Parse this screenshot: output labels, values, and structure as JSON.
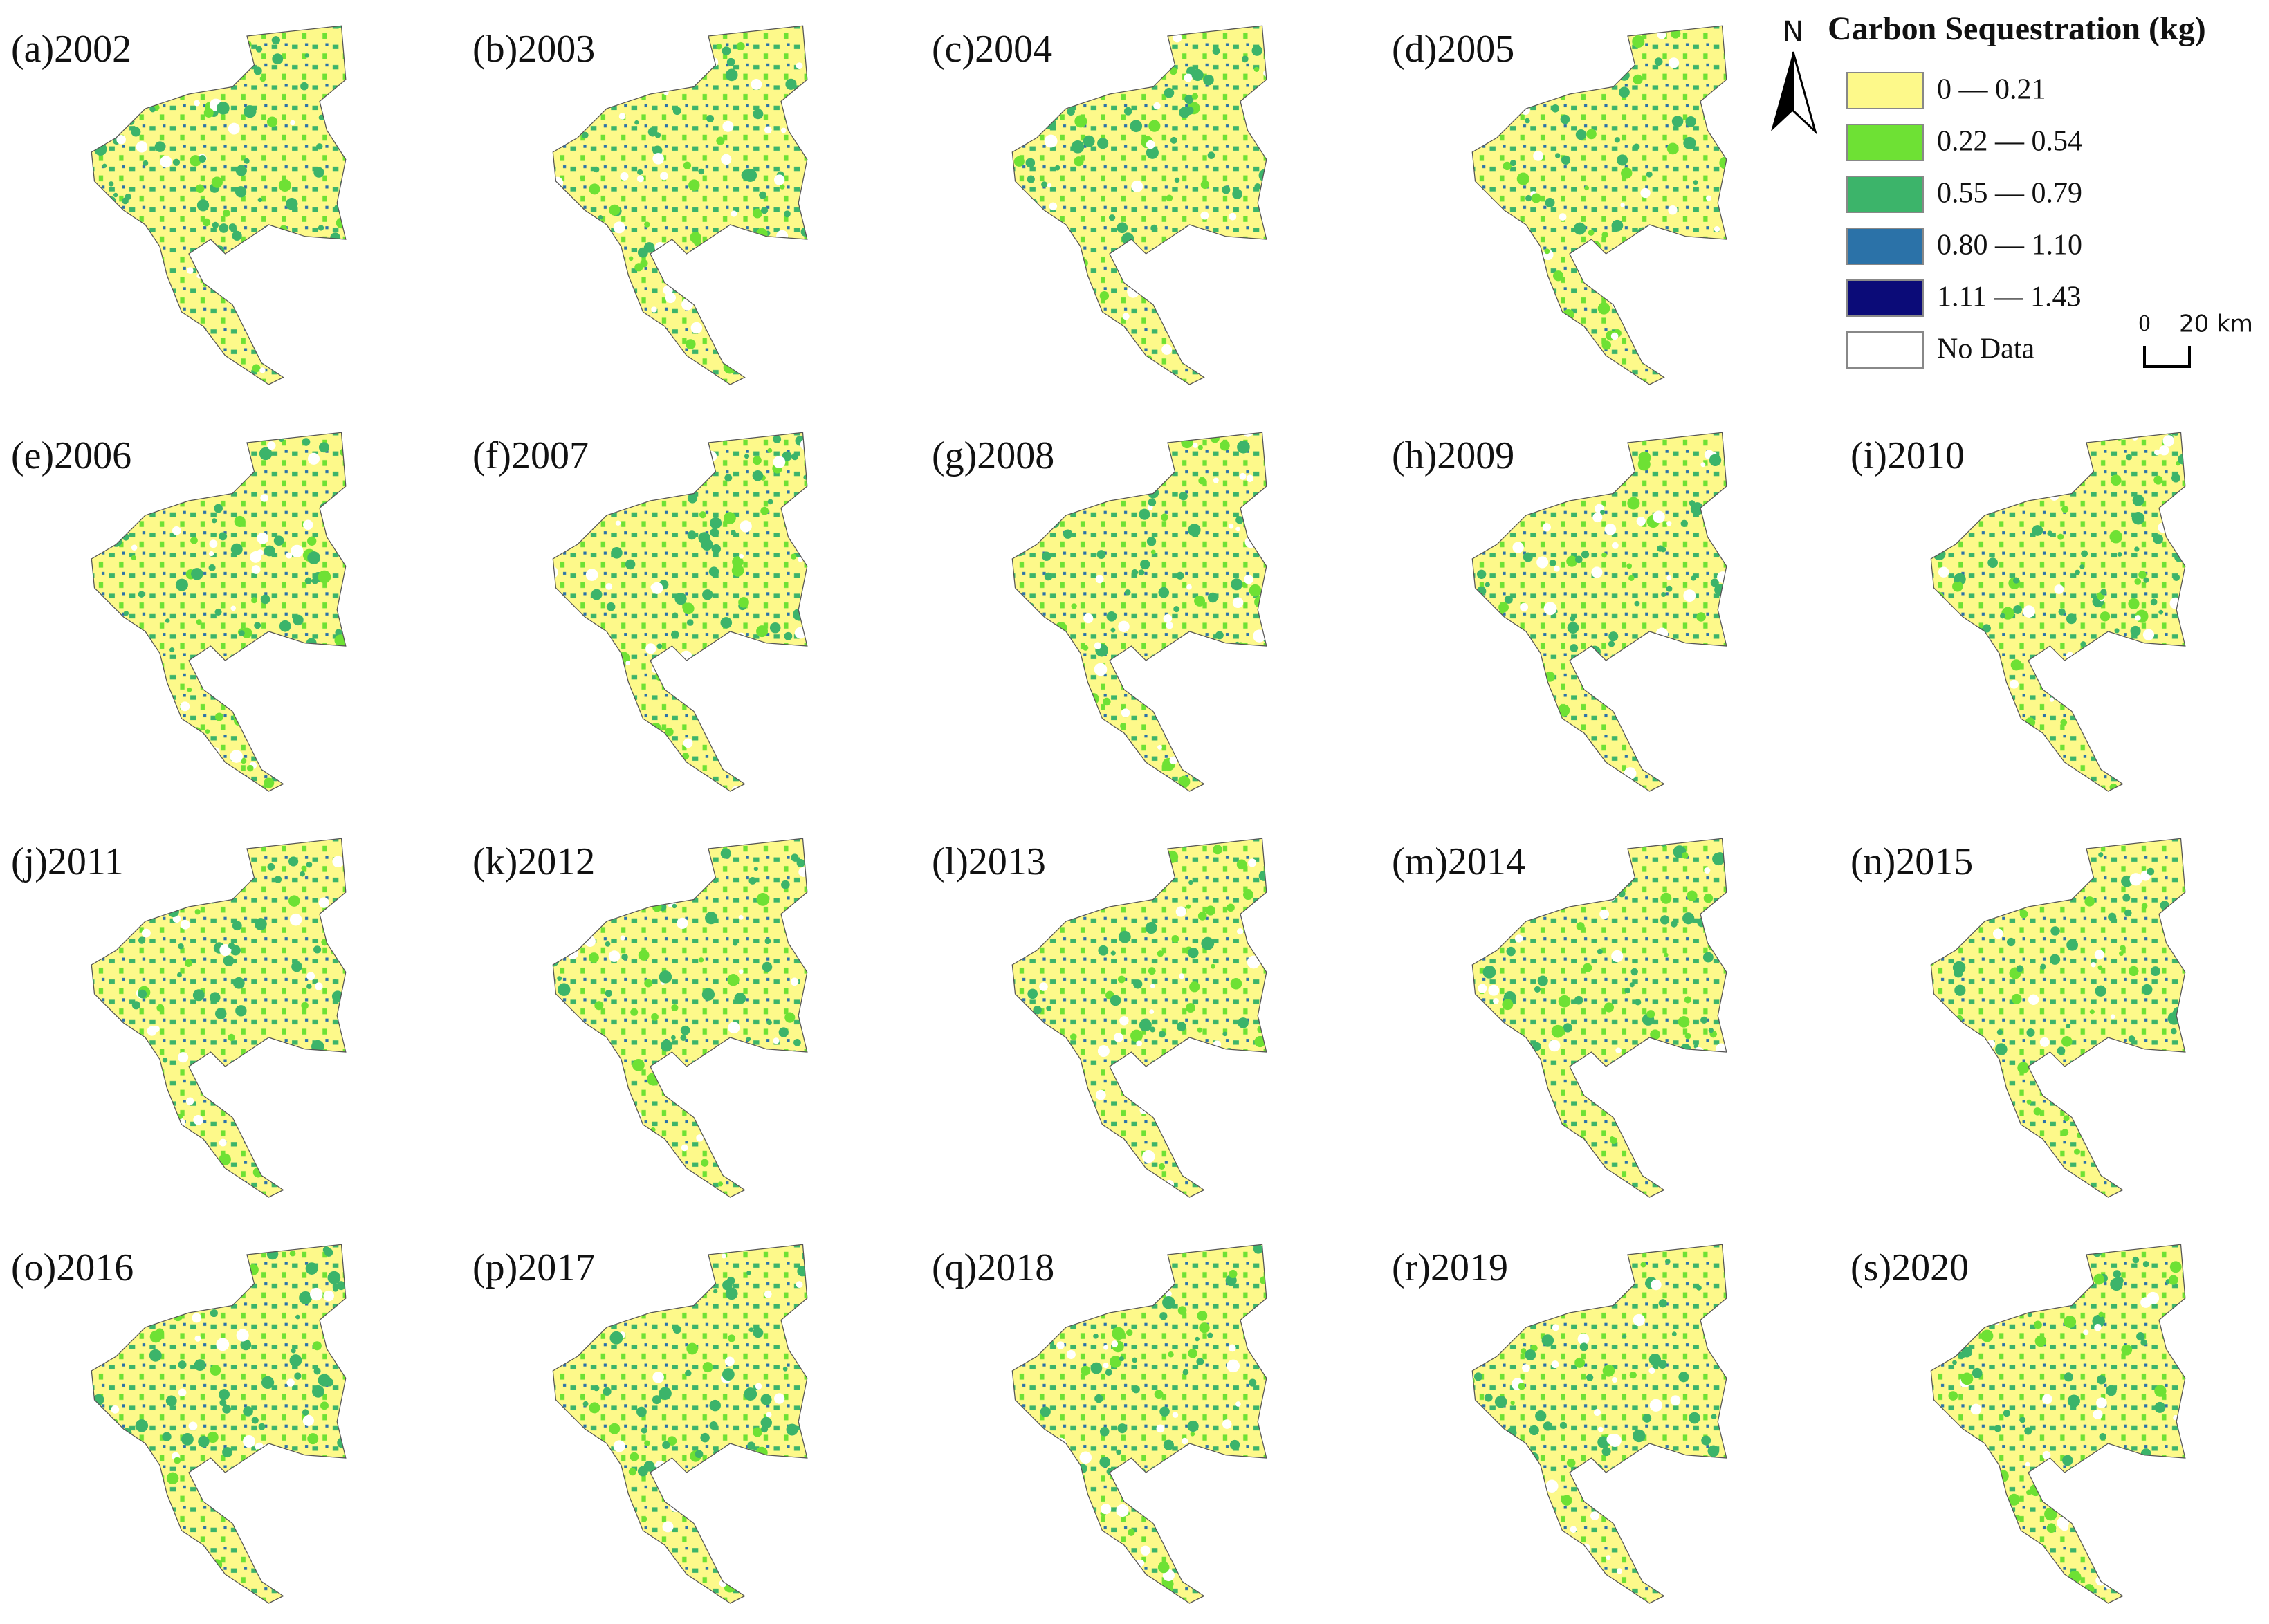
{
  "panels": [
    {
      "label": "(a)2002"
    },
    {
      "label": "(b)2003"
    },
    {
      "label": "(c)2004"
    },
    {
      "label": "(d)2005"
    },
    {
      "label": "(e)2006"
    },
    {
      "label": "(f)2007"
    },
    {
      "label": "(g)2008"
    },
    {
      "label": "(h)2009"
    },
    {
      "label": "(i)2010"
    },
    {
      "label": "(j)2011"
    },
    {
      "label": "(k)2012"
    },
    {
      "label": "(l)2013"
    },
    {
      "label": "(m)2014"
    },
    {
      "label": "(n)2015"
    },
    {
      "label": "(o)2016"
    },
    {
      "label": "(p)2017"
    },
    {
      "label": "(q)2018"
    },
    {
      "label": "(r)2019"
    },
    {
      "label": "(s)2020"
    }
  ],
  "legend": {
    "title": "Carbon Sequestration (kg)",
    "items": [
      {
        "label": "0 — 0.21",
        "color": "#fdf98a"
      },
      {
        "label": "0.22 — 0.54",
        "color": "#6ee134"
      },
      {
        "label": "0.55 — 0.79",
        "color": "#3cb46a"
      },
      {
        "label": "0.80 — 1.10",
        "color": "#2b72a8"
      },
      {
        "label": "1.11 — 1.43",
        "color": "#0b0b78"
      },
      {
        "label": "No Data",
        "color": "#ffffff"
      }
    ]
  },
  "north_arrow": {
    "label": "N"
  },
  "scale_bar": {
    "start": "0",
    "end": "20 km"
  }
}
